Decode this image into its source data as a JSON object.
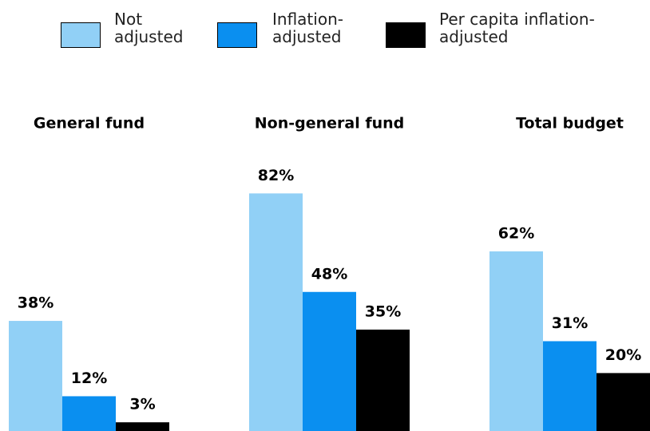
{
  "chart_data": {
    "type": "grouped_bar",
    "categories": [
      "General fund",
      "Non-general fund",
      "Total budget"
    ],
    "series": [
      {
        "name": "Not adjusted",
        "color": "#91d0f6",
        "values": [
          38,
          82,
          62
        ],
        "value_labels": [
          "38%",
          "82%",
          "62%"
        ]
      },
      {
        "name": "Inflation-adjusted",
        "color": "#0a8ff0",
        "values": [
          12,
          48,
          31
        ],
        "value_labels": [
          "12%",
          "48%",
          "31%"
        ]
      },
      {
        "name": "Per capita inflation-adjusted",
        "color": "#000000",
        "values": [
          3,
          35,
          20
        ],
        "value_labels": [
          "3%",
          "35%",
          "20%"
        ]
      }
    ]
  }
}
